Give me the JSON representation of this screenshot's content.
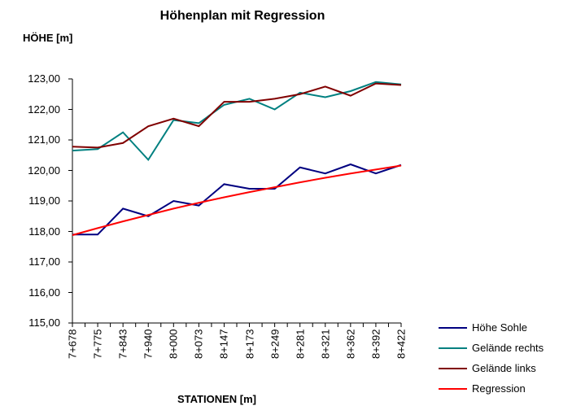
{
  "title": "Höhenplan mit Regression",
  "y_axis_label": "HÖHE [m]",
  "x_axis_label": "STATIONEN [m]",
  "colors": {
    "axis": "#000000",
    "background": "#ffffff"
  },
  "chart_data": {
    "type": "line",
    "title": "Höhenplan mit Regression",
    "xlabel": "STATIONEN [m]",
    "ylabel": "HÖHE [m]",
    "ylim": [
      115,
      123
    ],
    "y_tick_step": 1.0,
    "y_tick_labels": [
      "115,00",
      "116,00",
      "117,00",
      "118,00",
      "119,00",
      "120,00",
      "121,00",
      "122,00",
      "123,00"
    ],
    "grid": false,
    "legend_position": "right-bottom",
    "categories": [
      "7+678",
      "7+775",
      "7+843",
      "7+940",
      "8+000",
      "8+073",
      "8+147",
      "8+173",
      "8+249",
      "8+281",
      "8+321",
      "8+362",
      "8+392",
      "8+422"
    ],
    "series": [
      {
        "id": "hoehe-sohle",
        "name": "Höhe Sohle",
        "color": "#000080",
        "values": [
          117.9,
          117.9,
          118.75,
          118.5,
          119.0,
          118.85,
          119.55,
          119.4,
          119.4,
          120.1,
          119.9,
          120.2,
          119.9,
          120.18
        ]
      },
      {
        "id": "gelaende-rechts",
        "name": "Gelände rechts",
        "color": "#008080",
        "values": [
          120.65,
          120.7,
          121.25,
          120.35,
          121.65,
          121.55,
          122.15,
          122.35,
          122.0,
          122.55,
          122.4,
          122.6,
          122.9,
          122.82
        ]
      },
      {
        "id": "gelaende-links",
        "name": "Gelände links",
        "color": "#800000",
        "values": [
          120.78,
          120.75,
          120.9,
          121.45,
          121.7,
          121.45,
          122.25,
          122.25,
          122.35,
          122.5,
          122.75,
          122.45,
          122.85,
          122.8
        ]
      },
      {
        "id": "regression",
        "name": "Regression",
        "color": "#ff0000",
        "values": [
          117.88,
          118.11,
          118.33,
          118.54,
          118.75,
          118.94,
          119.12,
          119.29,
          119.45,
          119.61,
          119.76,
          119.9,
          120.03,
          120.16
        ]
      }
    ]
  }
}
